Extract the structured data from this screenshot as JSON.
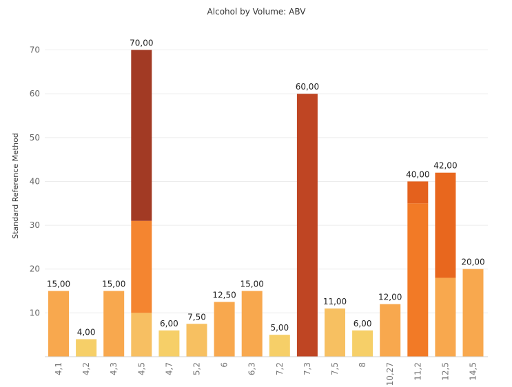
{
  "chart_data": {
    "type": "bar",
    "stacked": true,
    "title": "Alcohol by Volume: ABV",
    "ylabel": "Standard Reference Method",
    "xlabel": "",
    "ylim": [
      0,
      77
    ],
    "yticks": [
      10,
      20,
      30,
      40,
      50,
      60,
      70
    ],
    "grid": true,
    "categories": [
      "4,1",
      "4,2",
      "4,3",
      "4,5",
      "4,7",
      "5,2",
      "6",
      "6,3",
      "7,2",
      "7,3",
      "7,5",
      "8",
      "10,27",
      "11,2",
      "12,5",
      "14,5"
    ],
    "totals": [
      "15,00",
      "4,00",
      "15,00",
      "70,00",
      "6,00",
      "7,50",
      "12,50",
      "15,00",
      "5,00",
      "60,00",
      "11,00",
      "6,00",
      "12,00",
      "40,00",
      "42,00",
      "20,00"
    ],
    "bars": [
      [
        {
          "value": 15,
          "color": "#F8A84E"
        }
      ],
      [
        {
          "value": 4,
          "color": "#F6CF68"
        }
      ],
      [
        {
          "value": 15,
          "color": "#F8A84E"
        }
      ],
      [
        {
          "value": 10,
          "color": "#F7BF62"
        },
        {
          "value": 21,
          "color": "#F48530"
        },
        {
          "value": 39,
          "color": "#A23A24"
        }
      ],
      [
        {
          "value": 6,
          "color": "#F6CF68"
        }
      ],
      [
        {
          "value": 7.5,
          "color": "#F7C061"
        }
      ],
      [
        {
          "value": 12.5,
          "color": "#F8A84E"
        }
      ],
      [
        {
          "value": 15,
          "color": "#F8A84E"
        }
      ],
      [
        {
          "value": 5,
          "color": "#F6CF68"
        }
      ],
      [
        {
          "value": 60,
          "color": "#BF4523"
        }
      ],
      [
        {
          "value": 11,
          "color": "#F7C061"
        }
      ],
      [
        {
          "value": 6,
          "color": "#F6CF68"
        }
      ],
      [
        {
          "value": 12,
          "color": "#F8A84E"
        }
      ],
      [
        {
          "value": 35,
          "color": "#F27A26"
        },
        {
          "value": 5,
          "color": "#E4611D"
        }
      ],
      [
        {
          "value": 18,
          "color": "#F8A84E"
        },
        {
          "value": 24,
          "color": "#E8671E"
        }
      ],
      [
        {
          "value": 20,
          "color": "#F8A84E"
        }
      ]
    ]
  }
}
